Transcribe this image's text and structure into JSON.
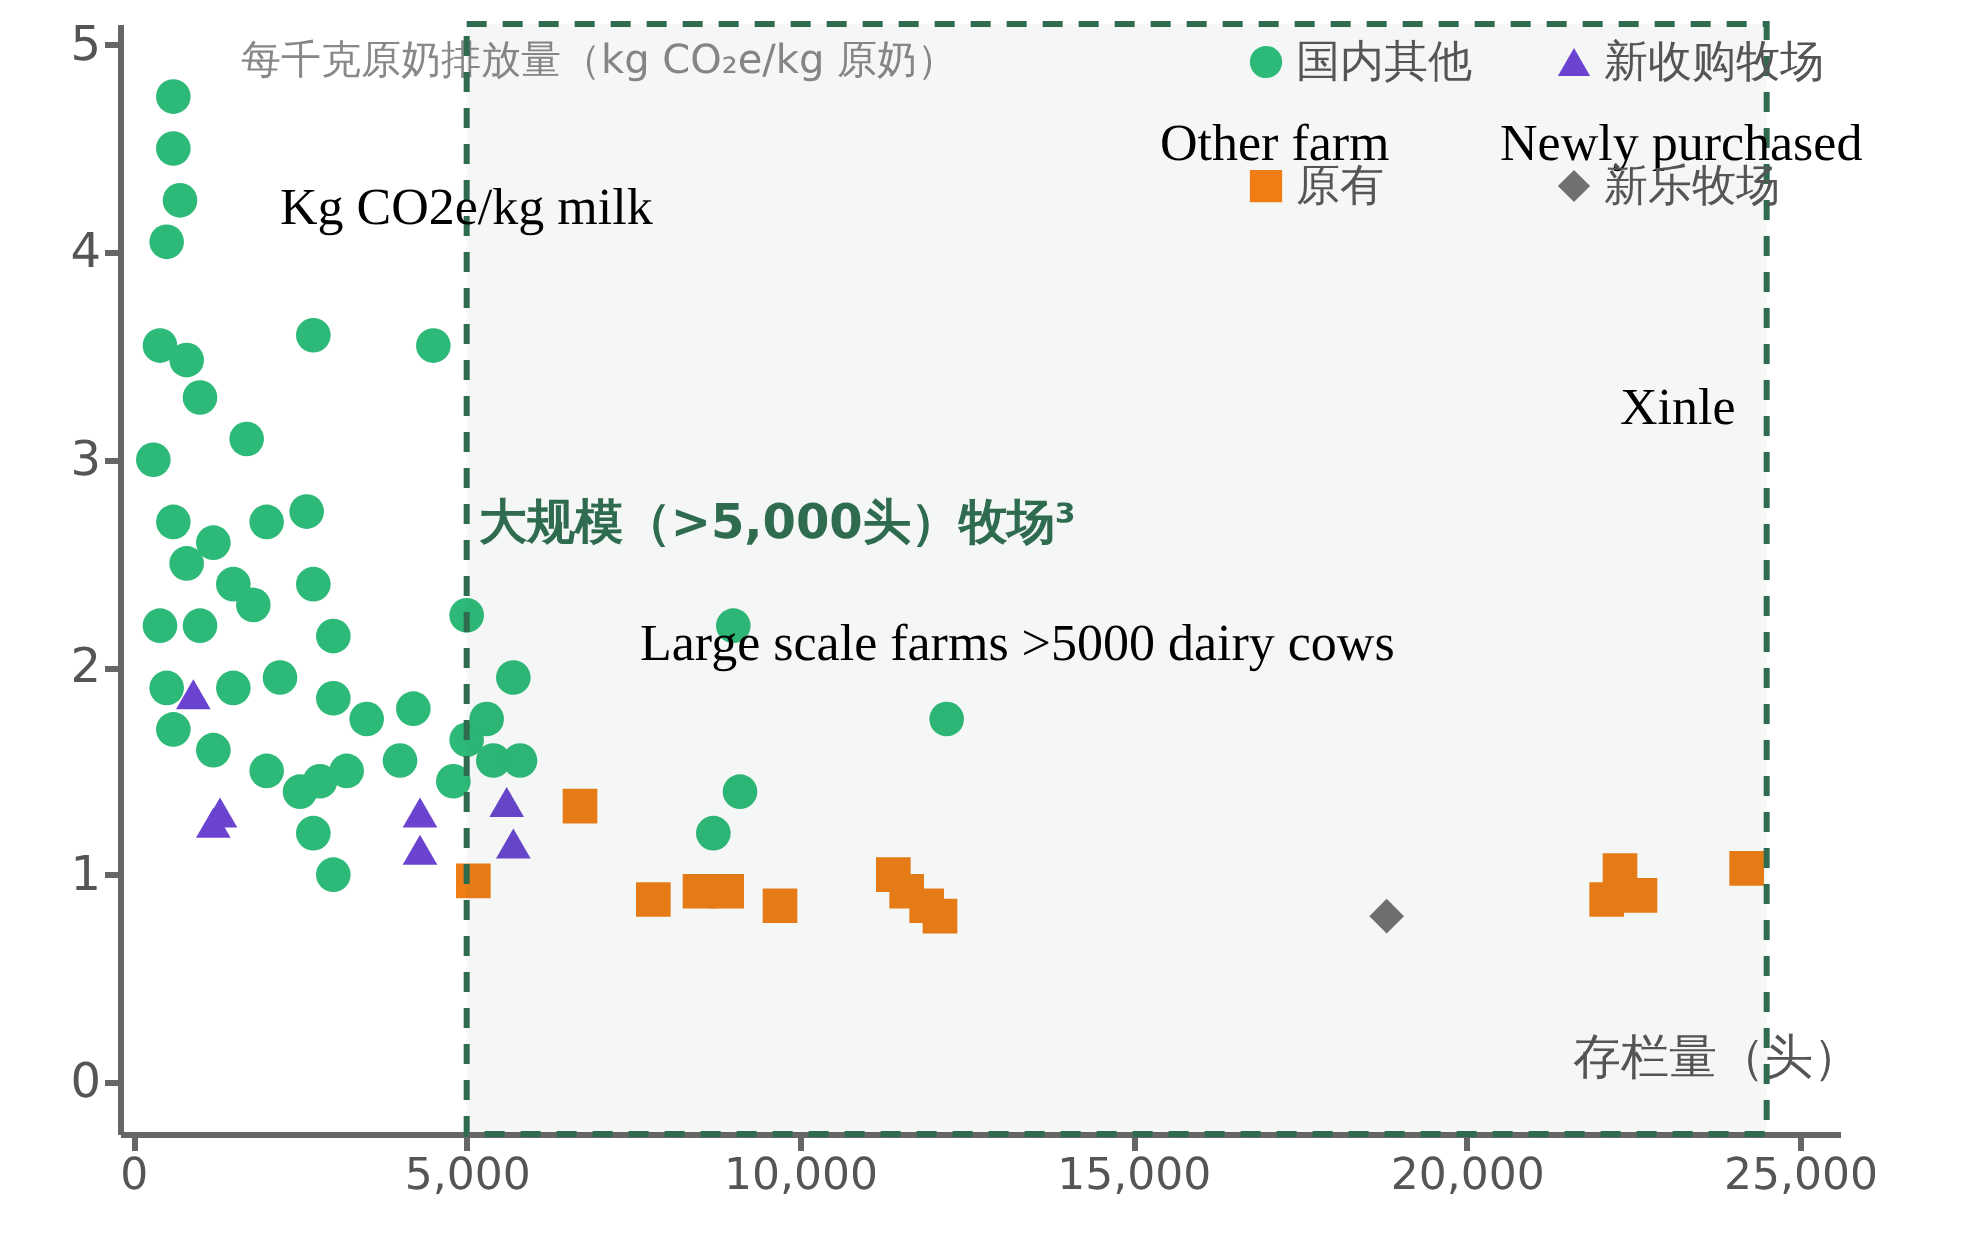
{
  "chart_data": {
    "type": "scatter",
    "ylabel": "每千克原奶排放量（kg CO₂e/kg 原奶）",
    "xlabel": "存栏量（头）",
    "xlim": [
      -200,
      25600
    ],
    "xticks": [
      {
        "value": 0,
        "label": "0"
      },
      {
        "value": 5000,
        "label": "5,000"
      },
      {
        "value": 10000,
        "label": "10,000"
      },
      {
        "value": 15000,
        "label": "15,000"
      },
      {
        "value": 20000,
        "label": "20,000"
      },
      {
        "value": 25000,
        "label": "25,000"
      }
    ],
    "ylim": [
      -0.25,
      5.1
    ],
    "yticks": [
      0,
      1,
      2,
      3,
      4,
      5
    ],
    "legend": "top right",
    "grid": false,
    "series": [
      {
        "name": "国内其他",
        "color": "#2dba78",
        "marker": "circle",
        "x": [
          600,
          600,
          700,
          500,
          400,
          800,
          2700,
          4500,
          300,
          1700,
          1000,
          2000,
          2600,
          2700,
          600,
          800,
          1200,
          1500,
          400,
          1000,
          1800,
          3000,
          500,
          1500,
          2200,
          3000,
          3500,
          4000,
          600,
          1200,
          2000,
          2500,
          2700,
          3000,
          2800,
          3200,
          4200,
          5000,
          5000,
          4800,
          5400,
          5700,
          5800,
          5300,
          9000,
          9100,
          8700,
          12200
        ],
        "values": [
          4.75,
          4.5,
          4.25,
          4.05,
          3.55,
          3.48,
          3.6,
          3.55,
          3.0,
          3.1,
          3.3,
          2.7,
          2.75,
          2.4,
          2.7,
          2.5,
          2.6,
          2.4,
          2.2,
          2.2,
          2.3,
          2.15,
          1.9,
          1.9,
          1.95,
          1.85,
          1.75,
          1.55,
          1.7,
          1.6,
          1.5,
          1.4,
          1.2,
          1.0,
          1.45,
          1.5,
          1.8,
          2.25,
          1.65,
          1.45,
          1.55,
          1.95,
          1.55,
          1.75,
          2.2,
          1.4,
          1.2,
          1.75
        ]
      },
      {
        "name": "新收购牧场",
        "color": "#6a44d0",
        "marker": "triangle",
        "x": [
          900,
          1300,
          1200,
          4300,
          4300,
          5600,
          5700
        ],
        "values": [
          1.87,
          1.3,
          1.25,
          1.3,
          1.12,
          1.35,
          1.15
        ]
      },
      {
        "name": "原有",
        "color": "#f07d14",
        "marker": "square",
        "x": [
          5100,
          6700,
          7800,
          8500,
          8900,
          9700,
          11400,
          11600,
          11900,
          12100,
          22300,
          22100,
          22600,
          24200
        ],
        "values": [
          0.97,
          1.33,
          0.88,
          0.92,
          0.92,
          0.85,
          1.0,
          0.92,
          0.85,
          0.8,
          1.02,
          0.88,
          0.9,
          1.03
        ]
      },
      {
        "name": "新乐牧场",
        "color": "#707070",
        "marker": "diamond",
        "x": [
          18800
        ],
        "values": [
          0.8
        ]
      }
    ],
    "bands": [
      {
        "axis": "x",
        "from": 5000,
        "to": 24500,
        "label": "大规模（>5,000头）牧场³",
        "color": "#2e6b4f"
      }
    ],
    "annotations": [
      "Kg CO2e/kg milk",
      "Other farm",
      "Newly purchased",
      "Xinle",
      "Large scale farms >5000 dairy cows"
    ]
  }
}
